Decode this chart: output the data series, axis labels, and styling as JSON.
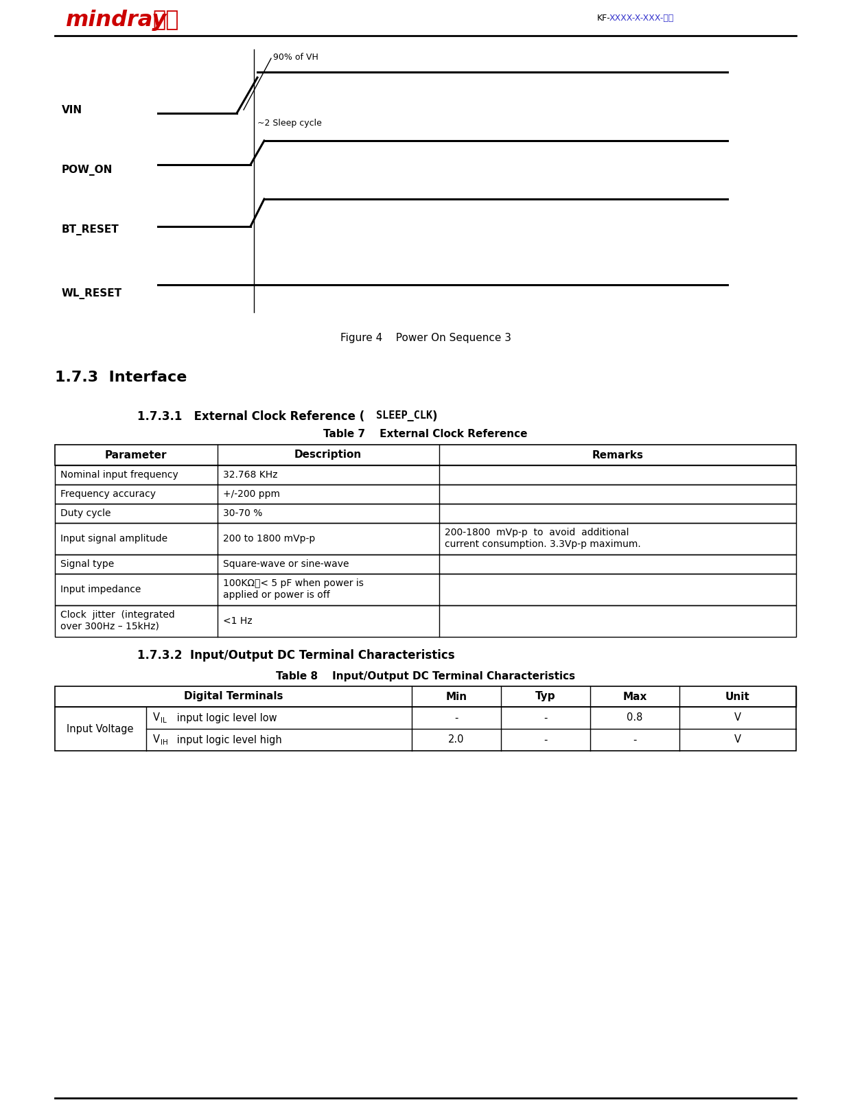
{
  "header_doc_id_black": "KF-",
  "header_doc_id_blue": "XXXX-X-XXX-版本",
  "figure_caption": "Figure 4    Power On Sequence 3",
  "section_173": "1.7.3  Interface",
  "section_1731_prefix": "1.7.3.1   External Clock Reference (",
  "section_1731_mono": "SLEEP_CLK",
  "section_1731_suffix": ")",
  "table7_title": "Table 7    External Clock Reference",
  "table7_headers": [
    "Parameter",
    "Description",
    "Remarks"
  ],
  "table7_rows": [
    [
      "Nominal input frequency",
      "32.768 KHz",
      ""
    ],
    [
      "Frequency accuracy",
      "+/-200 ppm",
      ""
    ],
    [
      "Duty cycle",
      "30-70 %",
      ""
    ],
    [
      "Input signal amplitude",
      "200 to 1800 mVp-p",
      "200-1800  mVp-p  to  avoid  additional\ncurrent consumption. 3.3Vp-p maximum."
    ],
    [
      "Signal type",
      "Square-wave or sine-wave",
      ""
    ],
    [
      "Input impedance",
      "100KΩ；< 5 pF when power is\napplied or power is off",
      ""
    ],
    [
      "Clock  jitter  (integrated\nover 300Hz – 15kHz)",
      "<1 Hz",
      ""
    ]
  ],
  "section_1732": "1.7.3.2  Input/Output DC Terminal Characteristics",
  "table8_title": "Table 8    Input/Output DC Terminal Characteristics",
  "table8_row_group": "Input Voltage",
  "table8_rows": [
    [
      "IL",
      " input logic level low",
      "-",
      "-",
      "0.8",
      "V"
    ],
    [
      "IH",
      " input logic level high",
      "2.0",
      "-",
      "-",
      "V"
    ]
  ],
  "waveform_labels": [
    "VIN",
    "POW_ON",
    "BT_RESET",
    "WL_RESET"
  ],
  "annotation_90vh": "90% of VH",
  "annotation_2sleep": "~2 Sleep cycle",
  "bg_color": "#ffffff"
}
